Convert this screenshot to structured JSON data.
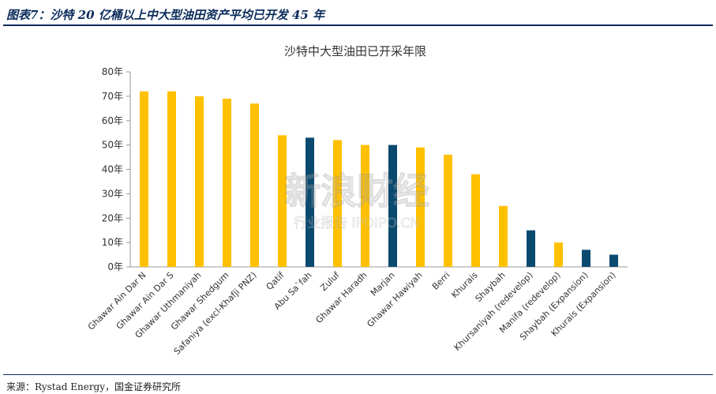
{
  "header": {
    "title": "图表7：沙特 20 亿桶以上中大型油田资产平均已开发 45 年"
  },
  "footer": {
    "source": "来源：Rystad Energy，国金证券研究所"
  },
  "watermark": {
    "main": "新浪财经",
    "sub": "行业报告 IPOIPO.CN"
  },
  "colors": {
    "primary": "#ffc000",
    "secondary": "#0b4a6f",
    "accent": "#0b2c5a"
  },
  "chart_data": {
    "type": "bar",
    "title": "沙特中大型油田已开采年限",
    "xlabel": "",
    "ylabel": "",
    "ylim": [
      0,
      80
    ],
    "y_ticks": [
      0,
      10,
      20,
      30,
      40,
      50,
      60,
      70,
      80
    ],
    "y_tick_labels": [
      "0年",
      "10年",
      "20年",
      "30年",
      "40年",
      "50年",
      "60年",
      "70年",
      "80年"
    ],
    "grid": false,
    "legend": "none",
    "categories": [
      "Ghawar Ain Dar N",
      "Ghawar Ain Dar S",
      "Ghawar Uthmaniyah",
      "Ghawar Shedgum",
      "Safaniya (excl-Khafji PNZ)",
      "Qatif",
      "Abu Sa`fah",
      "Zuluf",
      "Ghawar Haradh",
      "Marjan",
      "Ghawar Hawiyah",
      "Berri",
      "Khurais",
      "Shaybah",
      "Khursaniyah (redevelop)",
      "Manifa (redevelop)",
      "Shaybah (Expansion)",
      "Khurais (Expansion)"
    ],
    "values": [
      72,
      72,
      70,
      69,
      67,
      54,
      53,
      52,
      50,
      50,
      49,
      46,
      38,
      25,
      15,
      10,
      7,
      5
    ],
    "bar_colors": [
      "#ffc000",
      "#ffc000",
      "#ffc000",
      "#ffc000",
      "#ffc000",
      "#ffc000",
      "#0b4a6f",
      "#ffc000",
      "#ffc000",
      "#0b4a6f",
      "#ffc000",
      "#ffc000",
      "#ffc000",
      "#ffc000",
      "#0b4a6f",
      "#ffc000",
      "#0b4a6f",
      "#0b4a6f"
    ]
  }
}
